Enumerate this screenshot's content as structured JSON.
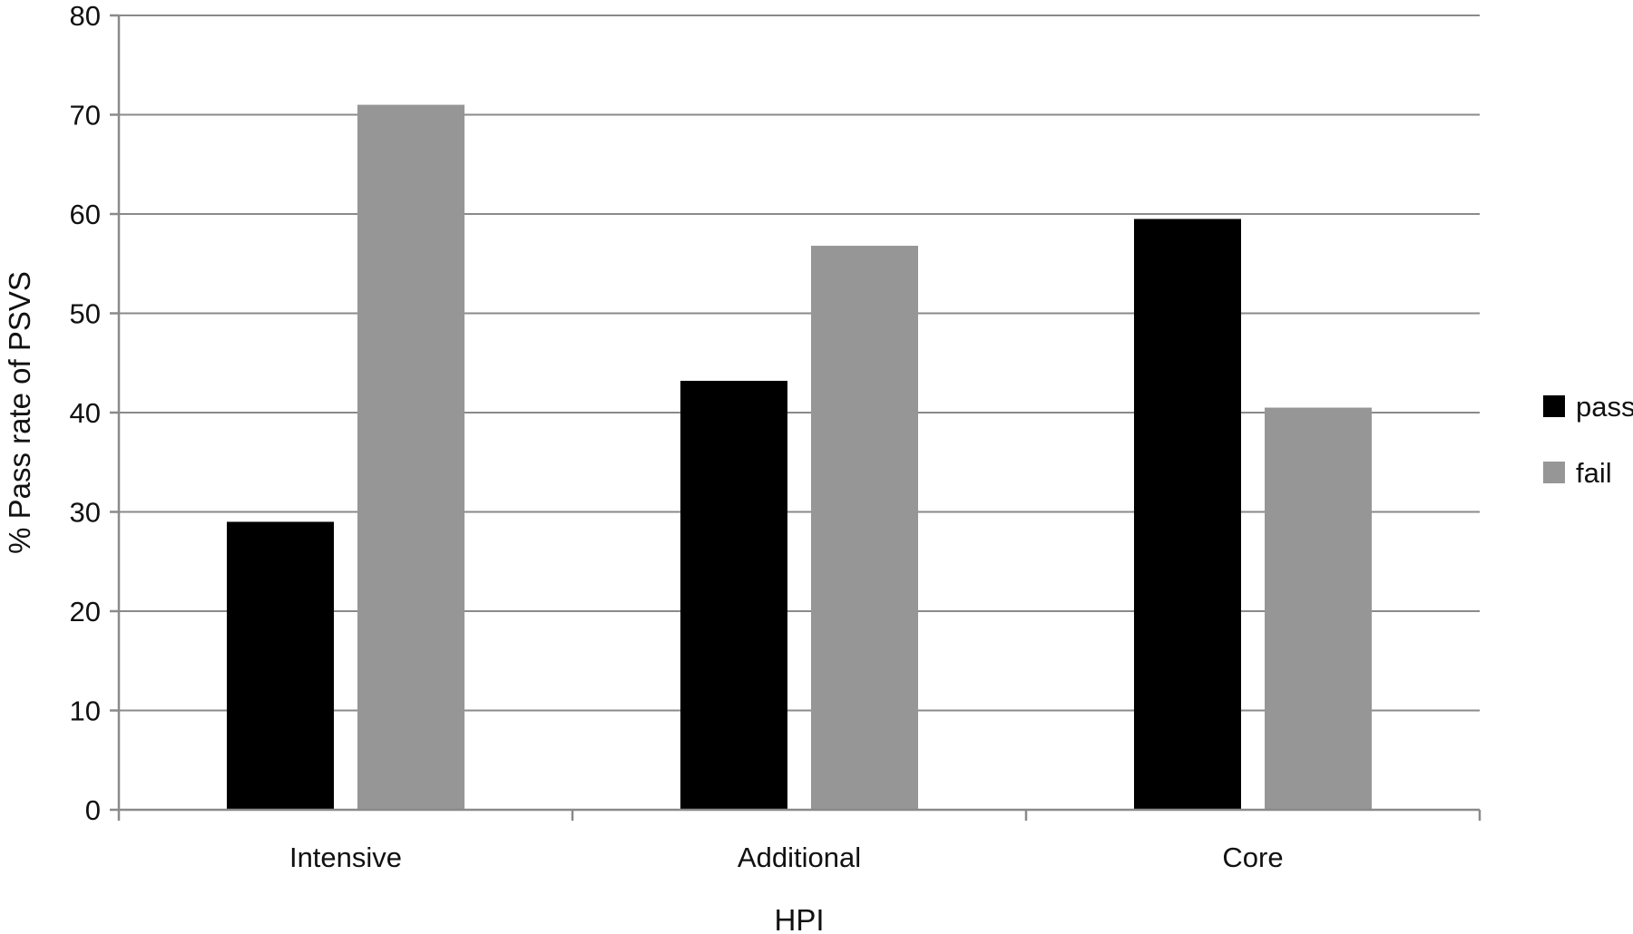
{
  "chart_data": {
    "type": "bar",
    "title": "",
    "xlabel": "HPI",
    "ylabel": "% Pass rate of PSVS",
    "categories": [
      "Intensive",
      "Additional",
      "Core"
    ],
    "series": [
      {
        "name": "pass",
        "color": "#000000",
        "values": [
          29,
          43.2,
          59.5
        ]
      },
      {
        "name": "fail",
        "color": "#969696",
        "values": [
          71,
          56.8,
          40.5
        ]
      }
    ],
    "ylim": [
      0,
      80
    ],
    "yticks": [
      0,
      10,
      20,
      30,
      40,
      50,
      60,
      70,
      80
    ],
    "grid": true,
    "legend_position": "right"
  }
}
